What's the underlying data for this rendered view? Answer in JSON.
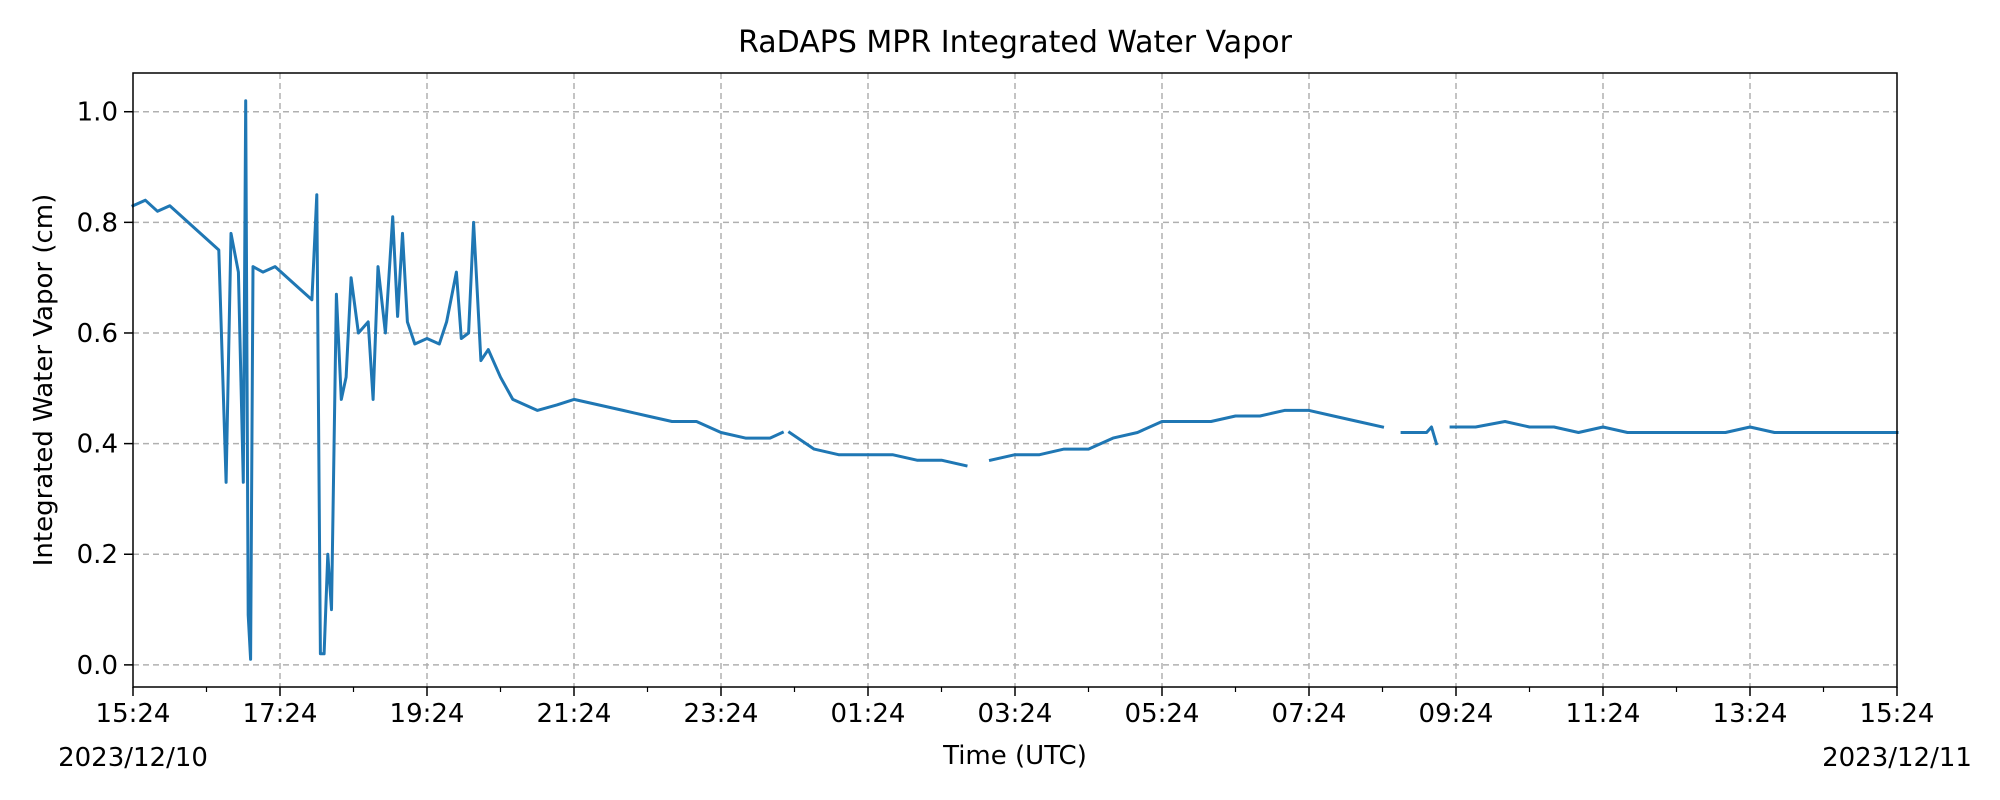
{
  "chart_data": {
    "type": "line",
    "title": "RaDAPS MPR Integrated Water Vapor",
    "xlabel": "Time (UTC)",
    "ylabel": "Integrated Water Vapor (cm)",
    "xlim": [
      "2023-12-10T15:24",
      "2023-12-11T15:24"
    ],
    "ylim": [
      -0.04,
      1.07
    ],
    "x_ticks": [
      "15:24",
      "17:24",
      "19:24",
      "21:24",
      "23:24",
      "01:24",
      "03:24",
      "05:24",
      "07:24",
      "09:24",
      "11:24",
      "13:24",
      "15:24"
    ],
    "x_date_labels": [
      "2023/12/10",
      "2023/12/11"
    ],
    "y_ticks": [
      "0.0",
      "0.2",
      "0.4",
      "0.6",
      "0.8",
      "1.0"
    ],
    "grid": true,
    "line_color": "#1f77b4",
    "series": [
      {
        "segments": [
          [
            [
              "15:24",
              0.83
            ],
            [
              "15:34",
              0.84
            ],
            [
              "15:44",
              0.82
            ],
            [
              "15:54",
              0.83
            ],
            [
              "16:04",
              0.81
            ],
            [
              "16:14",
              0.79
            ],
            [
              "16:24",
              0.77
            ],
            [
              "16:34",
              0.75
            ],
            [
              "16:40",
              0.33
            ],
            [
              "16:44",
              0.78
            ],
            [
              "16:50",
              0.71
            ],
            [
              "16:54",
              0.33
            ],
            [
              "16:56",
              1.02
            ],
            [
              "16:58",
              0.09
            ],
            [
              "17:00",
              0.01
            ],
            [
              "17:02",
              0.72
            ],
            [
              "17:10",
              0.71
            ],
            [
              "17:20",
              0.72
            ],
            [
              "17:30",
              0.7
            ],
            [
              "17:40",
              0.68
            ],
            [
              "17:50",
              0.66
            ],
            [
              "17:54",
              0.85
            ],
            [
              "17:57",
              0.02
            ],
            [
              "18:00",
              0.02
            ],
            [
              "18:03",
              0.2
            ],
            [
              "18:06",
              0.1
            ],
            [
              "18:10",
              0.67
            ],
            [
              "18:14",
              0.48
            ],
            [
              "18:18",
              0.52
            ],
            [
              "18:22",
              0.7
            ],
            [
              "18:28",
              0.6
            ],
            [
              "18:36",
              0.62
            ],
            [
              "18:40",
              0.48
            ],
            [
              "18:44",
              0.72
            ],
            [
              "18:50",
              0.6
            ],
            [
              "18:56",
              0.81
            ],
            [
              "19:00",
              0.63
            ],
            [
              "19:04",
              0.78
            ],
            [
              "19:08",
              0.62
            ],
            [
              "19:14",
              0.58
            ],
            [
              "19:24",
              0.59
            ],
            [
              "19:34",
              0.58
            ],
            [
              "19:40",
              0.62
            ],
            [
              "19:48",
              0.71
            ],
            [
              "19:52",
              0.59
            ],
            [
              "19:58",
              0.6
            ],
            [
              "20:02",
              0.8
            ],
            [
              "20:08",
              0.55
            ],
            [
              "20:14",
              0.57
            ],
            [
              "20:24",
              0.52
            ],
            [
              "20:34",
              0.48
            ],
            [
              "20:44",
              0.47
            ],
            [
              "20:54",
              0.46
            ],
            [
              "21:10",
              0.47
            ],
            [
              "21:24",
              0.48
            ],
            [
              "21:44",
              0.47
            ],
            [
              "22:04",
              0.46
            ],
            [
              "22:24",
              0.45
            ],
            [
              "22:44",
              0.44
            ],
            [
              "23:04",
              0.44
            ],
            [
              "23:24",
              0.42
            ],
            [
              "23:44",
              0.41
            ],
            [
              "24:04",
              0.41
            ],
            [
              "24:14",
              0.42
            ]
          ],
          [
            [
              "24:20",
              0.42
            ],
            [
              "24:40",
              0.39
            ],
            [
              "25:00",
              0.38
            ],
            [
              "25:24",
              0.38
            ],
            [
              "25:44",
              0.38
            ],
            [
              "26:04",
              0.37
            ],
            [
              "26:24",
              0.37
            ],
            [
              "26:44",
              0.36
            ]
          ],
          [
            [
              "27:04",
              0.37
            ],
            [
              "27:24",
              0.38
            ],
            [
              "27:44",
              0.38
            ],
            [
              "28:04",
              0.39
            ],
            [
              "28:24",
              0.39
            ],
            [
              "28:44",
              0.41
            ],
            [
              "29:04",
              0.42
            ],
            [
              "29:24",
              0.44
            ],
            [
              "29:44",
              0.44
            ],
            [
              "30:04",
              0.44
            ],
            [
              "30:24",
              0.45
            ],
            [
              "30:44",
              0.45
            ],
            [
              "31:04",
              0.46
            ],
            [
              "31:24",
              0.46
            ],
            [
              "31:44",
              0.45
            ],
            [
              "32:04",
              0.44
            ],
            [
              "32:24",
              0.43
            ]
          ],
          [
            [
              "32:40",
              0.42
            ],
            [
              "32:50",
              0.42
            ],
            [
              "33:00",
              0.42
            ],
            [
              "33:04",
              0.43
            ],
            [
              "33:08",
              0.4
            ]
          ],
          [
            [
              "33:20",
              0.43
            ],
            [
              "33:40",
              0.43
            ],
            [
              "34:04",
              0.44
            ],
            [
              "34:24",
              0.43
            ],
            [
              "34:44",
              0.43
            ],
            [
              "35:04",
              0.42
            ],
            [
              "35:24",
              0.43
            ],
            [
              "35:44",
              0.42
            ],
            [
              "36:04",
              0.42
            ],
            [
              "36:24",
              0.42
            ],
            [
              "36:44",
              0.42
            ],
            [
              "37:04",
              0.42
            ],
            [
              "37:24",
              0.43
            ],
            [
              "37:44",
              0.42
            ],
            [
              "38:04",
              0.42
            ],
            [
              "38:24",
              0.42
            ],
            [
              "38:44",
              0.42
            ],
            [
              "39:04",
              0.42
            ],
            [
              "39:24",
              0.42
            ]
          ]
        ]
      }
    ]
  }
}
